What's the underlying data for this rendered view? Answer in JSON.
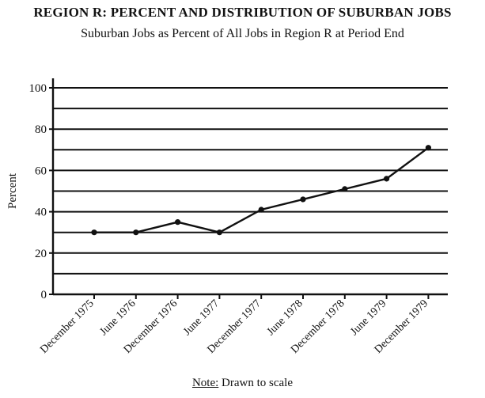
{
  "chart_data": {
    "type": "line",
    "title": "REGION R: PERCENT AND DISTRIBUTION OF SUBURBAN JOBS",
    "subtitle": "Suburban Jobs as Percent of All Jobs in Region R at Period End",
    "xlabel": "",
    "ylabel": "Percent",
    "ylim": [
      0,
      100
    ],
    "yticks": [
      0,
      20,
      40,
      60,
      80,
      100
    ],
    "grid": true,
    "categories": [
      "December 1975",
      "June 1976",
      "December 1976",
      "June 1977",
      "December 1977",
      "June 1978",
      "December 1978",
      "June 1979",
      "December 1979"
    ],
    "series": [
      {
        "values": [
          30,
          30,
          35,
          30,
          41,
          46,
          51,
          56,
          71
        ]
      }
    ],
    "colors": {
      "line": "#111111",
      "grid": "#111111"
    }
  },
  "note": {
    "label": "Note:",
    "text": " Drawn to scale"
  }
}
